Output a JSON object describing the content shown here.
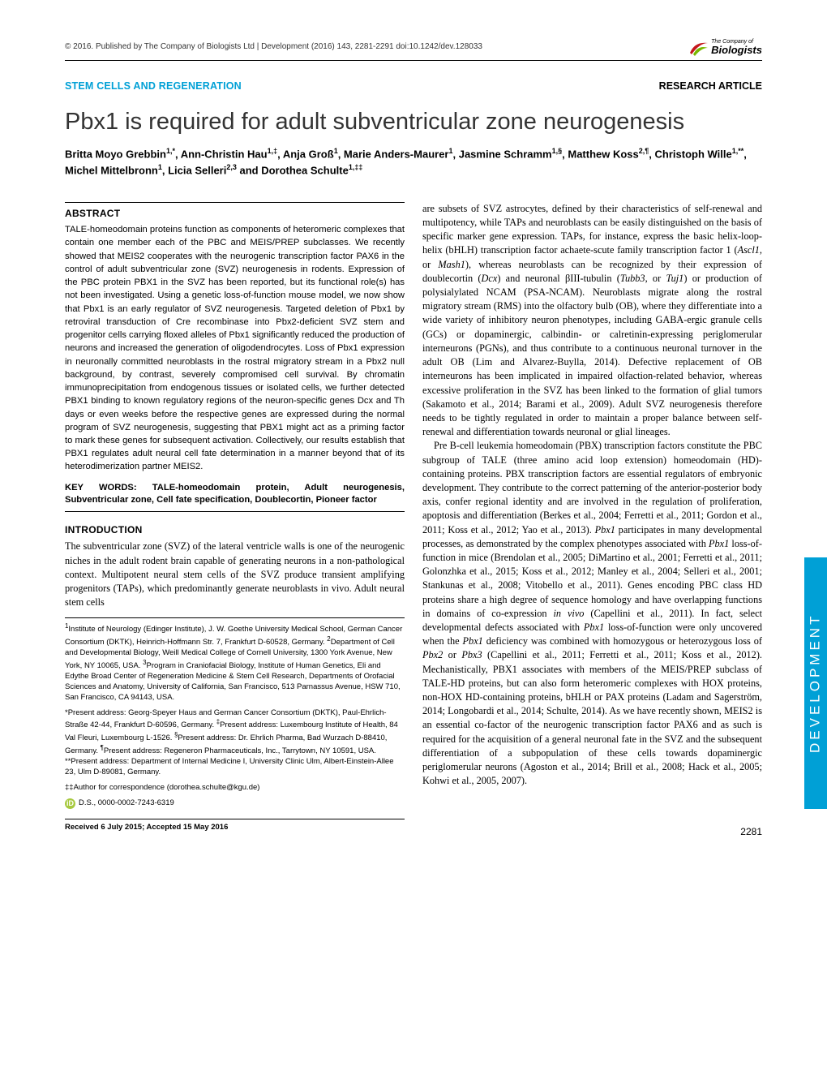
{
  "header": {
    "copyright": "© 2016. Published by The Company of Biologists Ltd | Development (2016) 143, 2281-2291 doi:10.1242/dev.128033",
    "logo_line1": "The Company of",
    "logo_line2": "Biologists"
  },
  "category": "STEM CELLS AND REGENERATION",
  "article_type": "RESEARCH ARTICLE",
  "title": "Pbx1 is required for adult subventricular zone neurogenesis",
  "authors_html": "Britta Moyo Grebbin<sup>1,*</sup>, Ann-Christin Hau<sup>1,‡</sup>, Anja Groß<sup>1</sup>, Marie Anders-Maurer<sup>1</sup>, Jasmine Schramm<sup>1,§</sup>, Matthew Koss<sup>2,¶</sup>, Christoph Wille<sup>1,**</sup>, Michel Mittelbronn<sup>1</sup>, Licia Selleri<sup>2,3</sup> and Dorothea Schulte<sup>1,‡‡</sup>",
  "abstract": {
    "heading": "ABSTRACT",
    "text": "TALE-homeodomain proteins function as components of heteromeric complexes that contain one member each of the PBC and MEIS/PREP subclasses. We recently showed that MEIS2 cooperates with the neurogenic transcription factor PAX6 in the control of adult subventricular zone (SVZ) neurogenesis in rodents. Expression of the PBC protein PBX1 in the SVZ has been reported, but its functional role(s) has not been investigated. Using a genetic loss-of-function mouse model, we now show that Pbx1 is an early regulator of SVZ neurogenesis. Targeted deletion of Pbx1 by retroviral transduction of Cre recombinase into Pbx2-deficient SVZ stem and progenitor cells carrying floxed alleles of Pbx1 significantly reduced the production of neurons and increased the generation of oligodendrocytes. Loss of Pbx1 expression in neuronally committed neuroblasts in the rostral migratory stream in a Pbx2 null background, by contrast, severely compromised cell survival. By chromatin immunoprecipitation from endogenous tissues or isolated cells, we further detected PBX1 binding to known regulatory regions of the neuron-specific genes Dcx and Th days or even weeks before the respective genes are expressed during the normal program of SVZ neurogenesis, suggesting that PBX1 might act as a priming factor to mark these genes for subsequent activation. Collectively, our results establish that PBX1 regulates adult neural cell fate determination in a manner beyond that of its heterodimerization partner MEIS2.",
    "keywords": "KEY WORDS: TALE-homeodomain protein, Adult neurogenesis, Subventricular zone, Cell fate specification, Doublecortin, Pioneer factor"
  },
  "intro": {
    "heading": "INTRODUCTION",
    "p1": "The subventricular zone (SVZ) of the lateral ventricle walls is one of the neurogenic niches in the adult rodent brain capable of generating neurons in a non-pathological context. Multipotent neural stem cells of the SVZ produce transient amplifying progenitors (TAPs), which predominantly generate neuroblasts in vivo. Adult neural stem cells",
    "p2_html": "are subsets of SVZ astrocytes, defined by their characteristics of self-renewal and multipotency, while TAPs and neuroblasts can be easily distinguished on the basis of specific marker gene expression. TAPs, for instance, express the basic helix-loop-helix (bHLH) transcription factor achaete-scute family transcription factor 1 (<em>Ascl1</em>, or <em>Mash1</em>), whereas neuroblasts can be recognized by their expression of doublecortin (<em>Dcx</em>) and neuronal βIII-tubulin (<em>Tubb3</em>, or <em>Tuj1</em>) or production of polysialylated NCAM (PSA-NCAM). Neuroblasts migrate along the rostral migratory stream (RMS) into the olfactory bulb (OB), where they differentiate into a wide variety of inhibitory neuron phenotypes, including GABA-ergic granule cells (GCs) or dopaminergic, calbindin- or calretinin-expressing periglomerular interneurons (PGNs), and thus contribute to a continuous neuronal turnover in the adult OB (Lim and Alvarez-Buylla, 2014). Defective replacement of OB interneurons has been implicated in impaired olfaction-related behavior, whereas excessive proliferation in the SVZ has been linked to the formation of glial tumors (Sakamoto et al., 2014; Barami et al., 2009). Adult SVZ neurogenesis therefore needs to be tightly regulated in order to maintain a proper balance between self-renewal and differentiation towards neuronal or glial lineages.",
    "p3_html": "Pre B-cell leukemia homeodomain (PBX) transcription factors constitute the PBC subgroup of TALE (three amino acid loop extension) homeodomain (HD)-containing proteins. PBX transcription factors are essential regulators of embryonic development. They contribute to the correct patterning of the anterior-posterior body axis, confer regional identity and are involved in the regulation of proliferation, apoptosis and differentiation (Berkes et al., 2004; Ferretti et al., 2011; Gordon et al., 2011; Koss et al., 2012; Yao et al., 2013). <em>Pbx1</em> participates in many developmental processes, as demonstrated by the complex phenotypes associated with <em>Pbx1</em> loss-of-function in mice (Brendolan et al., 2005; DiMartino et al., 2001; Ferretti et al., 2011; Golonzhka et al., 2015; Koss et al., 2012; Manley et al., 2004; Selleri et al., 2001; Stankunas et al., 2008; Vitobello et al., 2011). Genes encoding PBC class HD proteins share a high degree of sequence homology and have overlapping functions in domains of co-expression <em>in vivo</em> (Capellini et al., 2011). In fact, select developmental defects associated with <em>Pbx1</em> loss-of-function were only uncovered when the <em>Pbx1</em> deficiency was combined with homozygous or heterozygous loss of <em>Pbx2</em> or <em>Pbx3</em> (Capellini et al., 2011; Ferretti et al., 2011; Koss et al., 2012). Mechanistically, PBX1 associates with members of the MEIS/PREP subclass of TALE-HD proteins, but can also form heteromeric complexes with HOX proteins, non-HOX HD-containing proteins, bHLH or PAX proteins (Ladam and Sagerström, 2014; Longobardi et al., 2014; Schulte, 2014). As we have recently shown, MEIS2 is an essential co-factor of the neurogenic transcription factor PAX6 and as such is required for the acquisition of a general neuronal fate in the SVZ and the subsequent differentiation of a subpopulation of these cells towards dopaminergic periglomerular neurons (Agoston et al., 2014; Brill et al., 2008; Hack et al., 2005; Kohwi et al., 2005, 2007)."
  },
  "affiliations": {
    "p1_html": "<sup>1</sup>Institute of Neurology (Edinger Institute), J. W. Goethe University Medical School, German Cancer Consortium (DKTK), Heinrich-Hoffmann Str. 7, Frankfurt D-60528, Germany. <sup>2</sup>Department of Cell and Developmental Biology, Weill Medical College of Cornell University, 1300 York Avenue, New York, NY 10065, USA. <sup>3</sup>Program in Craniofacial Biology, Institute of Human Genetics, Eli and Edythe Broad Center of Regeneration Medicine & Stem Cell Research, Departments of Orofacial Sciences and Anatomy, University of California, San Francisco, 513 Parnassus Avenue, HSW 710, San Francisco, CA 94143, USA.",
    "p2_html": "*Present address: Georg-Speyer Haus and German Cancer Consortium (DKTK), Paul-Ehrlich-Straße 42-44, Frankfurt D-60596, Germany. <sup>‡</sup>Present address: Luxembourg Institute of Health, 84 Val Fleuri, Luxembourg L-1526. <sup>§</sup>Present address: Dr. Ehrlich Pharma, Bad Wurzach D-88410, Germany. <sup>¶</sup>Present address: Regeneron Pharmaceuticals, Inc., Tarrytown, NY 10591, USA. **Present address: Department of Internal Medicine I, University Clinic Ulm, Albert-Einstein-Allee 23, Ulm D-89081, Germany.",
    "correspondence": "‡‡Author for correspondence (dorothea.schulte@kgu.de)",
    "orcid": "D.S., 0000-0002-7243-6319",
    "received": "Received 6 July 2015; Accepted 15 May 2016"
  },
  "side_tab": "DEVELOPMENT",
  "page_number": "2281",
  "colors": {
    "accent": "#00a0d6",
    "orcid": "#a7c93f",
    "text": "#000000",
    "bg": "#ffffff"
  }
}
